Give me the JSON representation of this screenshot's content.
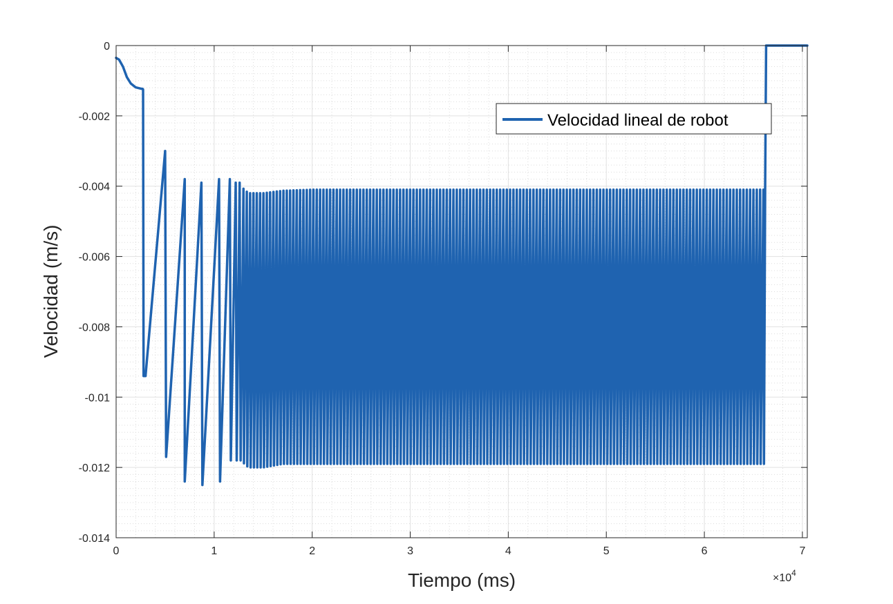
{
  "chart_data": {
    "type": "line",
    "title": "",
    "xlabel": "Tiempo (ms)",
    "ylabel": "Velocidad (m/s)",
    "x_exponent_label": "×10",
    "x_exponent_power": "4",
    "xlim": [
      0,
      70500
    ],
    "ylim": [
      -0.014,
      0
    ],
    "xticks": [
      0,
      10000,
      20000,
      30000,
      40000,
      50000,
      60000,
      70000
    ],
    "xtick_labels": [
      "0",
      "1",
      "2",
      "3",
      "4",
      "5",
      "6",
      "7"
    ],
    "yticks": [
      0,
      -0.002,
      -0.004,
      -0.006,
      -0.008,
      -0.01,
      -0.012,
      -0.014
    ],
    "ytick_labels": [
      "0",
      "-0.002",
      "-0.004",
      "-0.006",
      "-0.008",
      "-0.01",
      "-0.012",
      "-0.014"
    ],
    "grid": true,
    "minor_grid": true,
    "legend_position": "top-right",
    "series": [
      {
        "name": "Velocidad lineal de robot",
        "color": "#1f63b0",
        "initial_segment": [
          [
            0,
            -0.00035
          ],
          [
            300,
            -0.0004
          ],
          [
            700,
            -0.0006
          ],
          [
            1100,
            -0.0009
          ],
          [
            1500,
            -0.00108
          ],
          [
            2000,
            -0.00119
          ],
          [
            2600,
            -0.00123
          ],
          [
            2700,
            -0.00123
          ],
          [
            2750,
            -0.00125
          ],
          [
            2800,
            -0.0094
          ],
          [
            3000,
            -0.0094
          ]
        ],
        "early_oscillations": [
          {
            "x_low": 3000,
            "y_low": -0.0094,
            "x_high": 5000,
            "y_high": -0.003
          },
          {
            "x_low": 5100,
            "y_low": -0.0117,
            "x_high": 7000,
            "y_high": -0.0038
          },
          {
            "x_low": 7000,
            "y_low": -0.0124,
            "x_high": 8700,
            "y_high": -0.0039
          },
          {
            "x_low": 8800,
            "y_low": -0.0125,
            "x_high": 10500,
            "y_high": -0.0038
          },
          {
            "x_low": 10600,
            "y_low": -0.0124,
            "x_high": 11600,
            "y_high": -0.0038
          },
          {
            "x_low": 11700,
            "y_low": -0.0118,
            "x_high": 12200,
            "y_high": -0.0039
          },
          {
            "x_low": 12300,
            "y_low": -0.0118,
            "x_high": 12600,
            "y_high": -0.0039
          }
        ],
        "steady_oscillation": {
          "x_start": 12700,
          "x_end": 66200,
          "period": 340,
          "envelope_high": [
            [
              12700,
              -0.004
            ],
            [
              13500,
              -0.0042
            ],
            [
              15000,
              -0.0042
            ],
            [
              17000,
              -0.00413
            ],
            [
              20000,
              -0.0041
            ],
            [
              66200,
              -0.0041
            ]
          ],
          "envelope_low": [
            [
              12700,
              -0.0118
            ],
            [
              13500,
              -0.012
            ],
            [
              15000,
              -0.012
            ],
            [
              17000,
              -0.0119
            ],
            [
              20000,
              -0.0119
            ],
            [
              66200,
              -0.0119
            ]
          ]
        },
        "final_segment": [
          [
            66200,
            -0.0041
          ],
          [
            66300,
            0
          ],
          [
            70500,
            0
          ]
        ]
      }
    ]
  }
}
